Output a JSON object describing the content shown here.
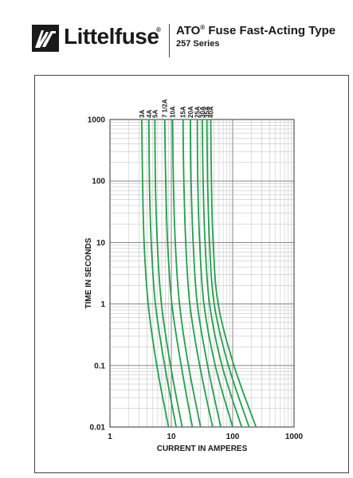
{
  "header": {
    "brand": "Littelfuse",
    "brand_mark": "®",
    "title": "ATO",
    "title_mark": "®",
    "title_rest": " Fuse Fast-Acting Type",
    "subtitle": "257 Series"
  },
  "chart_data": {
    "type": "line",
    "xscale": "log",
    "yscale": "log",
    "xlabel": "CURRENT IN AMPERES",
    "ylabel": "TIME IN SECONDS",
    "xlim": [
      1,
      1000
    ],
    "ylim": [
      0.01,
      1000
    ],
    "x_ticks": [
      "1",
      "10",
      "100",
      "1000"
    ],
    "y_ticks": [
      "0.01",
      "0.1",
      "1",
      "10",
      "100",
      "1000"
    ],
    "grid": true,
    "line_color": "#22a04b",
    "series": [
      {
        "name": "3A",
        "points": [
          [
            3.3,
            1000
          ],
          [
            3.4,
            100
          ],
          [
            3.6,
            10
          ],
          [
            4.2,
            1
          ],
          [
            5.8,
            0.1
          ],
          [
            9.0,
            0.01
          ]
        ]
      },
      {
        "name": "4A",
        "points": [
          [
            4.3,
            1000
          ],
          [
            4.4,
            100
          ],
          [
            4.7,
            10
          ],
          [
            5.5,
            1
          ],
          [
            7.8,
            0.1
          ],
          [
            12,
            0.01
          ]
        ]
      },
      {
        "name": "5A",
        "points": [
          [
            5.4,
            1000
          ],
          [
            5.5,
            100
          ],
          [
            5.9,
            10
          ],
          [
            6.9,
            1
          ],
          [
            9.7,
            0.1
          ],
          [
            15,
            0.01
          ]
        ]
      },
      {
        "name": "7 1/2A",
        "points": [
          [
            7.8,
            1000
          ],
          [
            8.1,
            100
          ],
          [
            8.7,
            10
          ],
          [
            10.2,
            1
          ],
          [
            14.5,
            0.1
          ],
          [
            22,
            0.01
          ]
        ]
      },
      {
        "name": "10A",
        "points": [
          [
            10.5,
            1000
          ],
          [
            10.8,
            100
          ],
          [
            11.6,
            10
          ],
          [
            13.6,
            1
          ],
          [
            19,
            0.1
          ],
          [
            30,
            0.01
          ]
        ]
      },
      {
        "name": "15A",
        "points": [
          [
            15.5,
            1000
          ],
          [
            16,
            100
          ],
          [
            17.2,
            10
          ],
          [
            20,
            1
          ],
          [
            29,
            0.1
          ],
          [
            47,
            0.01
          ]
        ]
      },
      {
        "name": "20A",
        "points": [
          [
            20.5,
            1000
          ],
          [
            21,
            100
          ],
          [
            22.7,
            10
          ],
          [
            26.5,
            1
          ],
          [
            39,
            0.1
          ],
          [
            64,
            0.01
          ]
        ]
      },
      {
        "name": "25A",
        "points": [
          [
            26.5,
            1000
          ],
          [
            27,
            100
          ],
          [
            29,
            10
          ],
          [
            34,
            1
          ],
          [
            52,
            0.1
          ],
          [
            100,
            0.01
          ]
        ]
      },
      {
        "name": "30A",
        "points": [
          [
            32,
            1000
          ],
          [
            33,
            100
          ],
          [
            35.5,
            10
          ],
          [
            42,
            1
          ],
          [
            67,
            0.1
          ],
          [
            140,
            0.01
          ]
        ]
      },
      {
        "name": "35A",
        "points": [
          [
            38,
            1000
          ],
          [
            39,
            100
          ],
          [
            42,
            10
          ],
          [
            50,
            1
          ],
          [
            85,
            0.1
          ],
          [
            185,
            0.01
          ]
        ]
      },
      {
        "name": "40A",
        "points": [
          [
            44,
            1000
          ],
          [
            45,
            100
          ],
          [
            48,
            10
          ],
          [
            58,
            1
          ],
          [
            105,
            0.1
          ],
          [
            240,
            0.01
          ]
        ]
      }
    ]
  }
}
